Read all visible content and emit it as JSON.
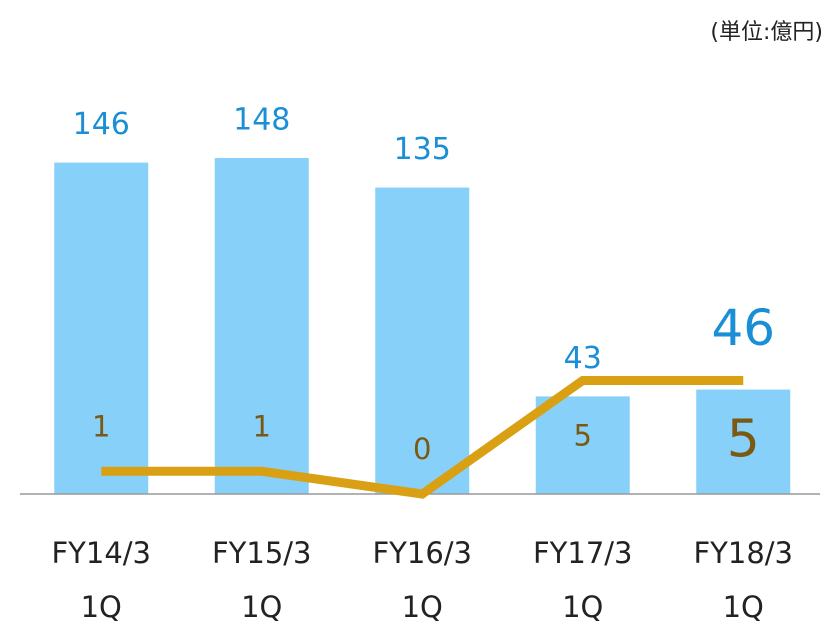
{
  "chart_data": {
    "type": "bar",
    "unit_label": "(単位:億円)",
    "categories": [
      "FY14/3\n1Q",
      "FY15/3\n1Q",
      "FY16/3\n1Q",
      "FY17/3\n1Q",
      "FY18/3\n1Q"
    ],
    "series": [
      {
        "type": "bar",
        "color": "#87d0fa",
        "label_color": "#1a8fd6",
        "values": [
          146,
          148,
          135,
          43,
          46
        ]
      },
      {
        "type": "line",
        "axis": "y2",
        "color": "#d9a013",
        "label_color": "#7a5a12",
        "values": [
          1,
          1,
          0,
          5,
          5
        ]
      }
    ],
    "ylim": [
      0,
      200
    ],
    "y2lim": [
      0,
      20
    ]
  }
}
